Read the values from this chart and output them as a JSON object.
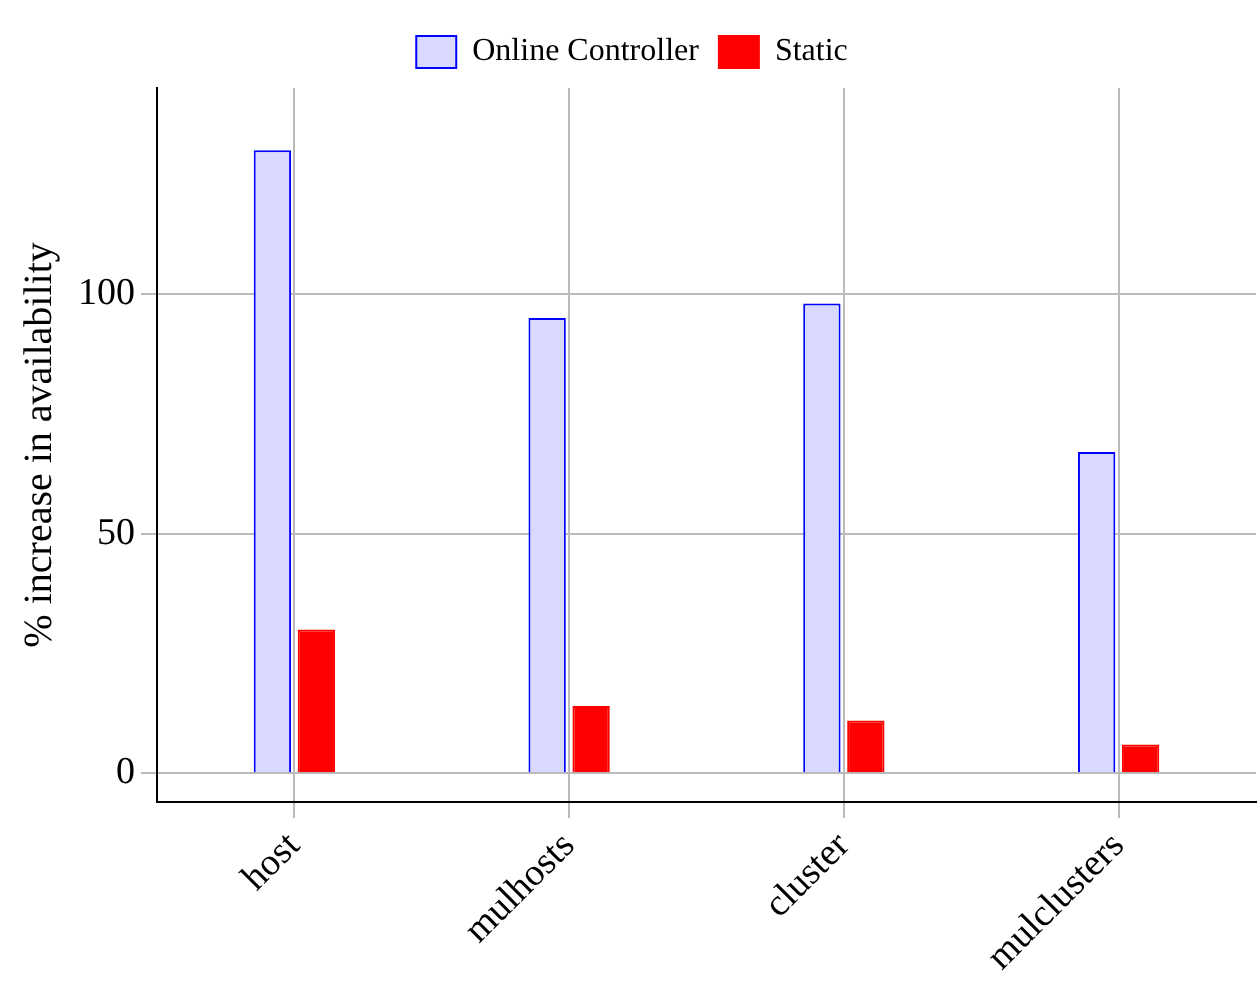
{
  "chart_data": {
    "type": "bar",
    "ylabel": "% increase in availability",
    "categories": [
      "host",
      "mulhosts",
      "cluster",
      "mulclusters"
    ],
    "series": [
      {
        "name": "Online Controller",
        "color": "#d9d9ff",
        "values": [
          130,
          95,
          98,
          67
        ]
      },
      {
        "name": "Static",
        "color": "#ff0000",
        "values": [
          30,
          14,
          11,
          6
        ]
      }
    ],
    "ylim": [
      -6,
      143
    ],
    "yticks": [
      0,
      50,
      100
    ],
    "grid": true,
    "legend": "top"
  }
}
